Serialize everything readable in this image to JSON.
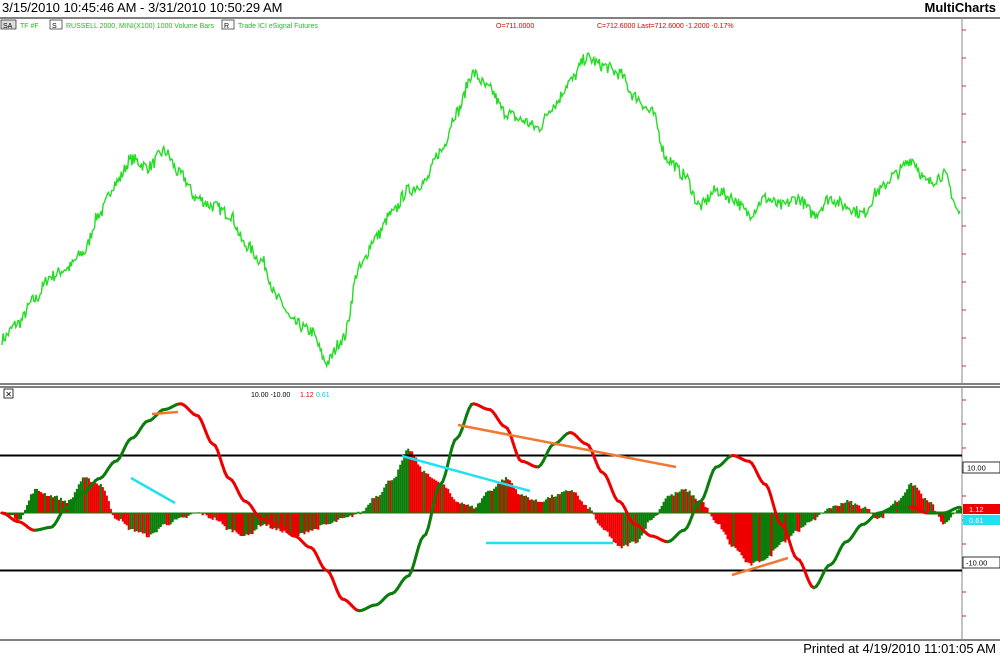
{
  "window": {
    "title": "3/15/2010 10:45:46 AM - 3/31/2010 10:50:29 AM",
    "brand": "MultiCharts",
    "footer": "Printed at 4/19/2010 11:01:05 AM"
  },
  "price_pane": {
    "tag_sa": "SA",
    "symbol": "TF #F",
    "tag_s": "S",
    "description": "RUSSELL 2000, MINI(X100)  1000 Volume Bars",
    "tag_r": "R",
    "feed": "Trade  ICI  eSignal  Futures",
    "open_readout": "O=711.0000",
    "close_readout": "C=712.6000  Last=712.6000  -1.2000  -0.17%",
    "line_color": "#22dd22"
  },
  "indicator_pane": {
    "close_box": "✕",
    "header_levels": "10.00  -10.00",
    "header_red": "1.12",
    "header_cyan": "0.61",
    "levels": {
      "upper": 10,
      "lower": -10
    },
    "axis_labels": {
      "upper": "10.00",
      "lower": "-10.00",
      "red_value": "1.12",
      "cyan_value": "0.61"
    },
    "colors": {
      "bull": "#0a7d0a",
      "bear": "#ee0000",
      "cyan": "#22e0f0",
      "orange": "#f07830"
    }
  },
  "chart_data": [
    {
      "type": "line",
      "series": [
        {
          "values": [
            700,
            702,
            705,
            708,
            709,
            711,
            716,
            720,
            723,
            722,
            724,
            721,
            718,
            717,
            716,
            712,
            710,
            705,
            702,
            701,
            697,
            700,
            709,
            713,
            716,
            719,
            720,
            724,
            729,
            734,
            732,
            729,
            728,
            727,
            730,
            733,
            736,
            735,
            734,
            731,
            729,
            723,
            721,
            717,
            719,
            718,
            716,
            718,
            717,
            718,
            716,
            718,
            717,
            716,
            719,
            721,
            723,
            720,
            721,
            716
          ]
        }
      ],
      "grid": false
    },
    {
      "type": "line",
      "levels": [
        10,
        -10
      ],
      "series": [
        {
          "values": [
            0,
            -1.5,
            -3,
            -2.5,
            1,
            3.5,
            6,
            9,
            13,
            16,
            18,
            19,
            17,
            12,
            6,
            2,
            -1,
            -2,
            -4,
            -6,
            -10,
            -15,
            -17,
            -16,
            -14,
            -11,
            -4,
            5,
            13,
            19,
            18,
            15,
            9,
            8,
            12,
            14,
            12,
            7,
            2,
            -2,
            -4,
            -5,
            -3,
            2,
            8,
            10,
            9,
            5,
            -2,
            -8,
            -13,
            -9,
            -5,
            -2,
            0,
            1,
            1,
            0,
            0,
            1
          ]
        },
        {
          "values": [
            0,
            -1,
            4,
            3,
            2,
            6,
            5,
            -1,
            -3,
            -4,
            -2,
            -1,
            0,
            -1,
            -3,
            -4,
            -2,
            -3,
            -4,
            -3,
            -2,
            -1,
            0,
            3,
            6,
            11,
            7,
            5,
            2,
            1,
            4,
            6,
            3,
            2,
            3,
            4,
            1,
            -3,
            -6,
            -5,
            -1,
            3,
            4,
            2,
            -2,
            -6,
            -9,
            -8,
            -5,
            -3,
            -1,
            1,
            2,
            1,
            -1,
            2,
            5,
            2,
            -2,
            1
          ]
        }
      ],
      "ylim": [
        -20,
        20
      ],
      "grid": false
    }
  ]
}
